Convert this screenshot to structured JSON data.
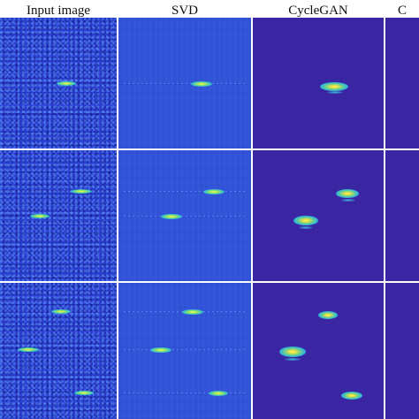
{
  "figure": {
    "column_titles": [
      "Input image",
      "SVD",
      "CycleGAN",
      "C"
    ],
    "colors": {
      "background": "#ffffff",
      "input_noise": "#2b3fcf",
      "svd_background": "#3153d8",
      "cyclegan_background": "#3a26a3",
      "target_core": "#fff34a"
    }
  }
}
